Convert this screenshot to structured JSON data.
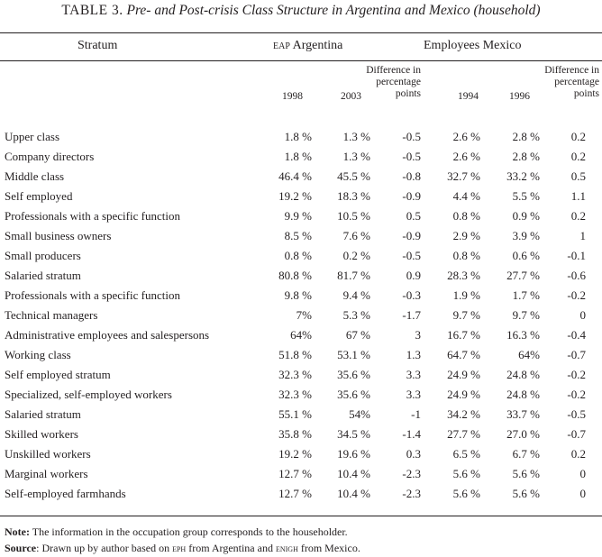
{
  "table": {
    "label": "TABLE 3.",
    "title": "Pre- and Post-crisis Class Structure in Argentina and Mexico (household)"
  },
  "headers": {
    "stratum": "Stratum",
    "argentina_abbr": "eap",
    "argentina_rest": " Argentina",
    "mexico": "Employees Mexico",
    "diff_arg": [
      "Difference in",
      "percentage",
      "points"
    ],
    "diff_mex": [
      "Difference in",
      "percentage",
      "points"
    ],
    "y1998": "1998",
    "y2003": "2003",
    "y1994": "1994",
    "y1996": "1996"
  },
  "rows": [
    {
      "stratum": "Upper class",
      "a1998": "1.8 %",
      "a2003": "1.3 %",
      "adiff": "-0.5",
      "m1994": "2.6 %",
      "m1996": "2.8 %",
      "mdiff": "0.2"
    },
    {
      "stratum": "Company directors",
      "a1998": "1.8 %",
      "a2003": "1.3 %",
      "adiff": "-0.5",
      "m1994": "2.6 %",
      "m1996": "2.8 %",
      "mdiff": "0.2"
    },
    {
      "stratum": "Middle class",
      "a1998": "46.4 %",
      "a2003": "45.5 %",
      "adiff": "-0.8",
      "m1994": "32.7 %",
      "m1996": "33.2 %",
      "mdiff": "0.5"
    },
    {
      "stratum": "Self employed",
      "a1998": "19.2 %",
      "a2003": "18.3 %",
      "adiff": "-0.9",
      "m1994": "4.4 %",
      "m1996": "5.5 %",
      "mdiff": "1.1"
    },
    {
      "stratum": "Professionals with a specific function",
      "a1998": "9.9 %",
      "a2003": "10.5 %",
      "adiff": "0.5",
      "m1994": "0.8 %",
      "m1996": "0.9 %",
      "mdiff": "0.2"
    },
    {
      "stratum": "Small business owners",
      "a1998": "8.5 %",
      "a2003": "7.6 %",
      "adiff": "-0.9",
      "m1994": "2.9 %",
      "m1996": "3.9 %",
      "mdiff": "1"
    },
    {
      "stratum": "Small producers",
      "a1998": "0.8 %",
      "a2003": "0.2 %",
      "adiff": "-0.5",
      "m1994": "0.8 %",
      "m1996": "0.6 %",
      "mdiff": "-0.1"
    },
    {
      "stratum": "Salaried stratum",
      "a1998": "80.8 %",
      "a2003": "81.7 %",
      "adiff": "0.9",
      "m1994": "28.3 %",
      "m1996": "27.7 %",
      "mdiff": "-0.6"
    },
    {
      "stratum": "Professionals with a specific function",
      "a1998": "9.8 %",
      "a2003": "9.4 %",
      "adiff": "-0.3",
      "m1994": "1.9 %",
      "m1996": "1.7 %",
      "mdiff": "-0.2"
    },
    {
      "stratum": "Technical managers",
      "a1998": "7%",
      "a2003": "5.3 %",
      "adiff": "-1.7",
      "m1994": "9.7 %",
      "m1996": "9.7 %",
      "mdiff": "0"
    },
    {
      "stratum": "Administrative employees and salespersons",
      "a1998": "64%",
      "a2003": "67 %",
      "adiff": "3",
      "m1994": "16.7 %",
      "m1996": "16.3 %",
      "mdiff": "-0.4"
    },
    {
      "stratum": "Working class",
      "a1998": "51.8 %",
      "a2003": "53.1 %",
      "adiff": "1.3",
      "m1994": "64.7 %",
      "m1996": "64%",
      "mdiff": "-0.7"
    },
    {
      "stratum": "Self employed stratum",
      "a1998": "32.3 %",
      "a2003": "35.6 %",
      "adiff": "3.3",
      "m1994": "24.9 %",
      "m1996": "24.8 %",
      "mdiff": "-0.2"
    },
    {
      "stratum": "Specialized, self-employed workers",
      "a1998": "32.3 %",
      "a2003": "35.6 %",
      "adiff": "3.3",
      "m1994": "24.9 %",
      "m1996": "24.8 %",
      "mdiff": "-0.2"
    },
    {
      "stratum": "Salaried stratum",
      "a1998": "55.1 %",
      "a2003": "54%",
      "adiff": "-1",
      "m1994": "34.2 %",
      "m1996": "33.7 %",
      "mdiff": "-0.5"
    },
    {
      "stratum": "Skilled workers",
      "a1998": "35.8 %",
      "a2003": "34.5 %",
      "adiff": "-1.4",
      "m1994": "27.7 %",
      "m1996": "27.0 %",
      "mdiff": "-0.7"
    },
    {
      "stratum": "Unskilled workers",
      "a1998": "19.2 %",
      "a2003": "19.6 %",
      "adiff": "0.3",
      "m1994": "6.5 %",
      "m1996": "6.7 %",
      "mdiff": "0.2"
    },
    {
      "stratum": "Marginal workers",
      "a1998": "12.7 %",
      "a2003": "10.4 %",
      "adiff": "-2.3",
      "m1994": "5.6 %",
      "m1996": "5.6 %",
      "mdiff": "0"
    },
    {
      "stratum": "Self-employed farmhands",
      "a1998": "12.7 %",
      "a2003": "10.4 %",
      "adiff": "-2.3",
      "m1994": "5.6 %",
      "m1996": "5.6 %",
      "mdiff": "0"
    }
  ],
  "notes": {
    "note_label": "Note:",
    "note_text": " The information in the occupation group corresponds to the householder.",
    "source_label": "Source",
    "source_text_1": ": Drawn up by author based on ",
    "source_eph": "eph",
    "source_text_2": " from Argentina and ",
    "source_enigh": "enigh",
    "source_text_3": " from Mexico."
  }
}
